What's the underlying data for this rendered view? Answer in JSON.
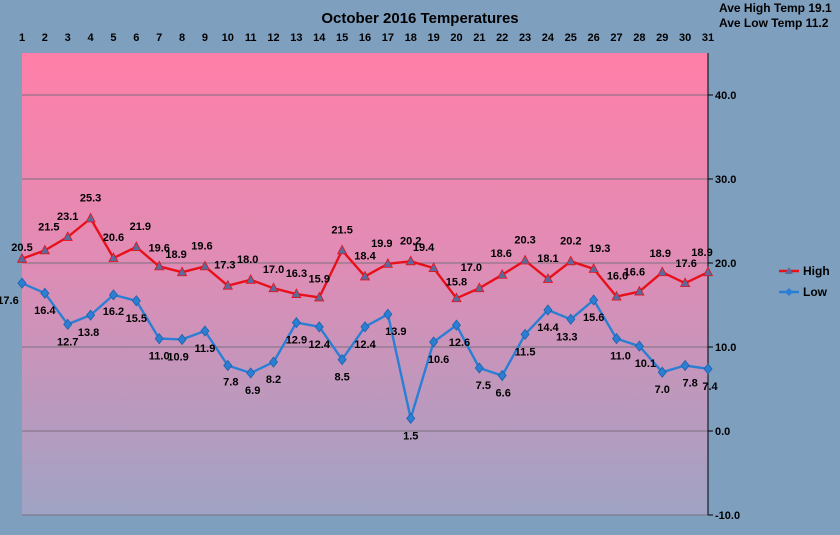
{
  "chart_data": {
    "type": "line",
    "title": "October 2016 Temperatures",
    "annotations": [
      "Ave High Temp 19.1",
      "Ave Low Temp 11.2"
    ],
    "x": [
      1,
      2,
      3,
      4,
      5,
      6,
      7,
      8,
      9,
      10,
      11,
      12,
      13,
      14,
      15,
      16,
      17,
      18,
      19,
      20,
      21,
      22,
      23,
      24,
      25,
      26,
      27,
      28,
      29,
      30,
      31
    ],
    "x_tick_labels": [
      "1",
      "2",
      "3",
      "4",
      "5",
      "6",
      "7",
      "8",
      "9",
      "10",
      "11",
      "12",
      "13",
      "14",
      "15",
      "16",
      "17",
      "18",
      "19",
      "20",
      "21",
      "22",
      "23",
      "24",
      "25",
      "26",
      "27",
      "28",
      "29",
      "30",
      "31"
    ],
    "ylim": [
      -10,
      45
    ],
    "y_ticks": [
      -10,
      0,
      10,
      20,
      30,
      40
    ],
    "y_tick_labels": [
      "-10.0",
      "0.0",
      "10.0",
      "20.0",
      "30.0",
      "40.0"
    ],
    "xlabel": "",
    "ylabel": "",
    "grid": true,
    "legend_position": "right",
    "series": [
      {
        "name": "High",
        "color": "#e8101a",
        "marker": "triangle",
        "values": [
          20.5,
          21.5,
          23.1,
          25.3,
          20.6,
          21.9,
          19.6,
          18.9,
          19.6,
          17.3,
          18.0,
          17.0,
          16.3,
          15.9,
          21.5,
          18.4,
          19.9,
          20.2,
          19.4,
          15.8,
          17.0,
          18.6,
          20.3,
          18.1,
          20.2,
          19.3,
          16.0,
          16.6,
          18.9,
          17.6,
          18.9
        ],
        "labels": [
          "20.5",
          "21.5",
          "23.1",
          "25.3",
          "20.6",
          "21.9",
          "19.6",
          "18.9",
          "19.6",
          "17.3",
          "18.0",
          "17.0",
          "16.3",
          "15.9",
          "21.5",
          "18.4",
          "19.9",
          "20.2",
          "19.4",
          "15.8",
          "17.0",
          "18.6",
          "20.3",
          "18.1",
          "20.2",
          "19.3",
          "16.0",
          "16.6",
          "18.9",
          "17.6",
          "18.9"
        ]
      },
      {
        "name": "Low",
        "color": "#2a7fd4",
        "marker": "diamond",
        "values": [
          17.6,
          16.4,
          12.7,
          13.8,
          16.2,
          15.5,
          11.0,
          10.9,
          11.9,
          7.8,
          6.9,
          8.2,
          12.9,
          12.4,
          8.5,
          12.4,
          13.9,
          1.5,
          10.6,
          12.6,
          7.5,
          6.6,
          11.5,
          14.4,
          13.3,
          15.6,
          11.0,
          10.1,
          7.0,
          7.8,
          7.4
        ],
        "labels": [
          "17.6",
          "16.4",
          "12.7",
          "13.8",
          "16.2",
          "15.5",
          "11.0",
          "10.9",
          "11.9",
          "7.8",
          "6.9",
          "8.2",
          "12.9",
          "12.4",
          "8.5",
          "12.4",
          "13.9",
          "1.5",
          "10.6",
          "12.6",
          "7.5",
          "6.6",
          "11.5",
          "14.4",
          "13.3",
          "15.6",
          "11.0",
          "10.1",
          "7.0",
          "7.8",
          "7.4"
        ]
      }
    ],
    "colors": {
      "background": "#7f9fbf",
      "plot_top": "#ff7fa8",
      "plot_bottom": "#9fa3c4",
      "gridline": "#7b6f80"
    }
  }
}
